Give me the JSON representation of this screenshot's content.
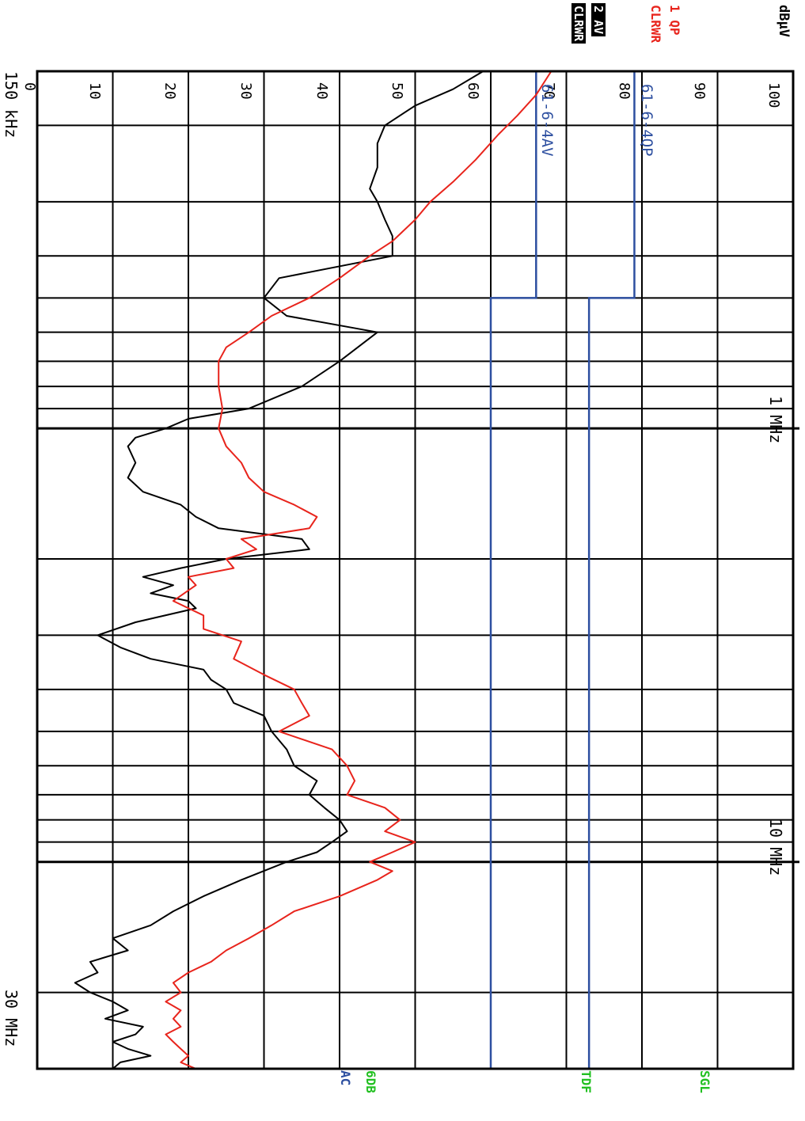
{
  "chart_data": {
    "type": "line",
    "orientation": "rotated-90-cw",
    "unit": "dBµV",
    "x_scale": "log",
    "xlim_hz": [
      150000,
      30000000
    ],
    "ylim": [
      0,
      100
    ],
    "y_ticks": [
      "100",
      "90",
      "80",
      "70",
      "60",
      "50",
      "40",
      "30",
      "20",
      "10",
      "0"
    ],
    "x_labels": {
      "start": "150 kHz",
      "mid1": "1 MHz",
      "mid2": "10 MHz",
      "end": "30 MHz"
    },
    "traces": {
      "qp": {
        "number": "1",
        "mode": "QP",
        "clear": "CLRWR",
        "color": "#e8241c"
      },
      "av": {
        "number": "2",
        "mode": "AV",
        "clear": "CLRWR",
        "color": "#000000"
      }
    },
    "limit_labels": {
      "qp": "61-6-4QP",
      "av": "61-6-4AV"
    },
    "side_labels": {
      "sgl": "SGL",
      "tdf": "TDF",
      "sixdb": "6DB",
      "ac": "AC"
    },
    "limits": [
      {
        "name": "61-6-4QP",
        "segments": [
          [
            0.15,
            0.5,
            79
          ],
          [
            0.5,
            30,
            73
          ]
        ]
      },
      {
        "name": "61-6-4AV",
        "segments": [
          [
            0.15,
            0.5,
            66
          ],
          [
            0.5,
            30,
            60
          ]
        ]
      }
    ],
    "grid": true,
    "series": [
      {
        "key": "qp",
        "color": "#e8241c",
        "x": [
          0.15,
          0.17,
          0.19,
          0.21,
          0.24,
          0.27,
          0.3,
          0.33,
          0.37,
          0.4,
          0.45,
          0.5,
          0.55,
          0.6,
          0.65,
          0.7,
          0.75,
          0.8,
          0.9,
          1.0,
          1.1,
          1.2,
          1.3,
          1.4,
          1.5,
          1.6,
          1.7,
          1.8,
          1.9,
          2.0,
          2.1,
          2.2,
          2.3,
          2.5,
          2.7,
          2.9,
          3.1,
          3.4,
          3.7,
          4.0,
          4.3,
          4.6,
          5.0,
          5.5,
          6.0,
          6.5,
          7.0,
          7.5,
          8.0,
          8.5,
          9.0,
          9.5,
          10.0,
          10.5,
          11,
          12,
          13,
          14,
          15,
          16,
          17,
          18,
          19,
          20,
          21,
          22,
          23,
          24,
          25,
          26,
          27,
          28,
          29,
          30
        ],
        "y": [
          68,
          66,
          63.5,
          61,
          58,
          55,
          52,
          50,
          47,
          44,
          40,
          36,
          31,
          28,
          25,
          24,
          24,
          24,
          24.5,
          24,
          25,
          27,
          28,
          30,
          34,
          37,
          36,
          27,
          29,
          25,
          26,
          20,
          21,
          18,
          22,
          22,
          27,
          26,
          30,
          34,
          35,
          36,
          32,
          39,
          41,
          42,
          41,
          46,
          48,
          46,
          50,
          47,
          44,
          47,
          45,
          40,
          34,
          31,
          28,
          25,
          23,
          20,
          18,
          19,
          17,
          19,
          18,
          19,
          17,
          18,
          19,
          20,
          19,
          21
        ]
      },
      {
        "key": "av",
        "color": "#000000",
        "x": [
          0.15,
          0.165,
          0.18,
          0.2,
          0.22,
          0.25,
          0.28,
          0.3,
          0.33,
          0.36,
          0.4,
          0.45,
          0.5,
          0.55,
          0.6,
          0.7,
          0.8,
          0.9,
          0.95,
          1.0,
          1.05,
          1.1,
          1.2,
          1.3,
          1.4,
          1.5,
          1.6,
          1.7,
          1.8,
          1.9,
          2.0,
          2.1,
          2.2,
          2.3,
          2.4,
          2.5,
          2.6,
          2.8,
          3.0,
          3.2,
          3.4,
          3.6,
          3.8,
          4.0,
          4.3,
          4.6,
          5.0,
          5.5,
          6.0,
          6.5,
          7.0,
          7.5,
          8.0,
          8.5,
          9.0,
          9.5,
          10.0,
          11,
          12,
          13,
          14,
          15,
          16,
          17,
          18,
          19,
          20,
          21,
          22,
          23,
          24,
          25,
          26,
          27,
          28,
          29,
          30
        ],
        "y": [
          59,
          55,
          50,
          46,
          45,
          45,
          44,
          45,
          46,
          47,
          47,
          32,
          30,
          33,
          45,
          40,
          35,
          28,
          20,
          17,
          13,
          12,
          13,
          12,
          14,
          19,
          21,
          24,
          35,
          36,
          25,
          19,
          14,
          18,
          15,
          20,
          21,
          13,
          8,
          11,
          15,
          22,
          23,
          25,
          26,
          30,
          31,
          33,
          34,
          37,
          36,
          38,
          40,
          41,
          39,
          37,
          33,
          27,
          22,
          18,
          15,
          10,
          12,
          7,
          8,
          5,
          7,
          10,
          12,
          9,
          14,
          13,
          10,
          12,
          15,
          11,
          10
        ]
      }
    ]
  }
}
